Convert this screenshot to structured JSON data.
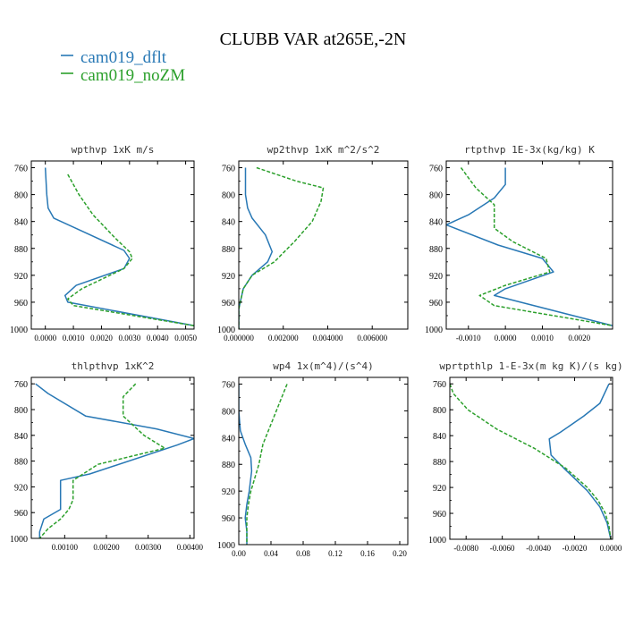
{
  "figure": {
    "title": "CLUBB VAR at265E,-2N",
    "legend": [
      {
        "label": "cam019_dflt",
        "color": "#2878b5"
      },
      {
        "label": "cam019_noZM",
        "color": "#2ca02c"
      }
    ]
  },
  "chart_data": [
    {
      "type": "line",
      "title": "wpthvp   1xK m/s",
      "xlim": [
        -0.0005,
        0.0053
      ],
      "ylim": [
        1000,
        750
      ],
      "xticks": [
        0.0,
        0.001,
        0.002,
        0.003,
        0.004,
        0.005
      ],
      "xtick_labels": [
        "0.0000",
        "0.0010",
        "0.0020",
        "0.0030",
        "0.0040",
        "0.0050"
      ],
      "yticks": [
        760,
        800,
        840,
        880,
        920,
        960,
        1000
      ],
      "series": [
        {
          "name": "cam019_dflt",
          "color": "#2878b5",
          "dashed": false,
          "x": [
            0.0,
            5e-05,
            0.0001,
            0.0003,
            0.0028,
            0.003,
            0.0028,
            0.0011,
            0.0007,
            0.0008,
            0.0053
          ],
          "y": [
            760,
            800,
            820,
            835,
            883,
            895,
            910,
            935,
            950,
            960,
            995
          ]
        },
        {
          "name": "cam019_noZM",
          "color": "#2ca02c",
          "dashed": true,
          "x": [
            0.0008,
            0.0012,
            0.0017,
            0.0025,
            0.003,
            0.0031,
            0.0028,
            0.0013,
            0.0008,
            0.001,
            0.0053
          ],
          "y": [
            770,
            800,
            830,
            865,
            885,
            895,
            910,
            940,
            955,
            965,
            995
          ]
        }
      ]
    },
    {
      "type": "line",
      "title": "wp2thvp   1xK m^2/s^2",
      "xlim": [
        0.0,
        0.0076
      ],
      "ylim": [
        1000,
        750
      ],
      "xticks": [
        0.0,
        0.002,
        0.004,
        0.006
      ],
      "xtick_labels": [
        "0.000000",
        "0.002000",
        "0.004000",
        "0.006000"
      ],
      "yticks": [
        760,
        800,
        840,
        880,
        920,
        960,
        1000
      ],
      "series": [
        {
          "name": "cam019_dflt",
          "color": "#2878b5",
          "dashed": false,
          "x": [
            0.0003,
            0.0003,
            0.0004,
            0.0006,
            0.0012,
            0.0015,
            0.0013,
            0.0006,
            0.0002,
            0.0,
            0.0
          ],
          "y": [
            760,
            800,
            820,
            835,
            860,
            885,
            900,
            920,
            940,
            970,
            1000
          ]
        },
        {
          "name": "cam019_noZM",
          "color": "#2ca02c",
          "dashed": true,
          "x": [
            0.0008,
            0.0026,
            0.0038,
            0.0037,
            0.0033,
            0.0025,
            0.0016,
            0.0006,
            0.0002,
            0.0,
            0.0
          ],
          "y": [
            760,
            780,
            790,
            810,
            840,
            870,
            900,
            920,
            940,
            970,
            1000
          ]
        }
      ]
    },
    {
      "type": "line",
      "title": "rtpthvp   1E-3x(kg/kg) K",
      "xlim": [
        -0.0016,
        0.0029
      ],
      "ylim": [
        1000,
        750
      ],
      "xticks": [
        -0.001,
        0.0,
        0.001,
        0.002
      ],
      "xtick_labels": [
        "-0.0010",
        "0.0000",
        "0.0010",
        "0.0020"
      ],
      "yticks": [
        760,
        800,
        840,
        880,
        920,
        960,
        1000
      ],
      "series": [
        {
          "name": "cam019_dflt",
          "color": "#2878b5",
          "dashed": false,
          "x": [
            0.0,
            0.0,
            -0.0003,
            -0.001,
            -0.0016,
            -0.0002,
            0.001,
            0.0013,
            0.0,
            -0.0003,
            0.0029
          ],
          "y": [
            760,
            785,
            805,
            830,
            845,
            875,
            895,
            915,
            940,
            950,
            995
          ]
        },
        {
          "name": "cam019_noZM",
          "color": "#2ca02c",
          "dashed": true,
          "x": [
            -0.0012,
            -0.0008,
            -0.0003,
            -0.0003,
            0.0002,
            0.0011,
            0.0012,
            0.0,
            -0.0007,
            -0.0003,
            0.0029
          ],
          "y": [
            760,
            790,
            815,
            850,
            870,
            895,
            915,
            935,
            950,
            965,
            995
          ]
        }
      ]
    },
    {
      "type": "line",
      "title": "thlpthvp   1xK^2",
      "xlim": [
        0.0002,
        0.0041
      ],
      "ylim": [
        1000,
        750
      ],
      "xticks": [
        0.001,
        0.002,
        0.003,
        0.004
      ],
      "xtick_labels": [
        "0.00100",
        "0.00200",
        "0.00300",
        "0.00400"
      ],
      "yticks": [
        760,
        800,
        840,
        880,
        920,
        960,
        1000
      ],
      "series": [
        {
          "name": "cam019_dflt",
          "color": "#2878b5",
          "dashed": false,
          "x": [
            0.0003,
            0.0006,
            0.0015,
            0.0032,
            0.0041,
            0.0037,
            0.0016,
            0.0009,
            0.0009,
            0.0009,
            0.0005,
            0.0004,
            0.0004
          ],
          "y": [
            760,
            775,
            810,
            830,
            845,
            855,
            900,
            910,
            930,
            955,
            970,
            990,
            1000
          ]
        },
        {
          "name": "cam019_noZM",
          "color": "#2ca02c",
          "dashed": true,
          "x": [
            0.0027,
            0.0024,
            0.0024,
            0.0029,
            0.0034,
            0.0018,
            0.0012,
            0.0012,
            0.0011,
            0.0009,
            0.0006,
            0.0004
          ],
          "y": [
            760,
            780,
            810,
            840,
            860,
            885,
            910,
            940,
            955,
            970,
            985,
            1000
          ]
        }
      ]
    },
    {
      "type": "line",
      "title": "wp4   1x(m^4)/(s^4)",
      "xlim": [
        0.0,
        0.21
      ],
      "ylim": [
        1000,
        750
      ],
      "xticks": [
        0.0,
        0.04,
        0.08,
        0.12,
        0.16,
        0.2
      ],
      "xtick_labels": [
        "0.00",
        "0.04",
        "0.08",
        "0.12",
        "0.16",
        "0.20"
      ],
      "yticks": [
        760,
        800,
        840,
        880,
        920,
        960,
        1000
      ],
      "series": [
        {
          "name": "cam019_dflt",
          "color": "#2878b5",
          "dashed": false,
          "x": [
            0.0,
            0.0,
            0.002,
            0.008,
            0.015,
            0.016,
            0.013,
            0.01,
            0.008,
            0.01,
            0.01
          ],
          "y": [
            760,
            800,
            830,
            850,
            870,
            890,
            920,
            940,
            960,
            980,
            1000
          ]
        },
        {
          "name": "cam019_noZM",
          "color": "#2ca02c",
          "dashed": true,
          "x": [
            0.06,
            0.05,
            0.04,
            0.03,
            0.025,
            0.02,
            0.015,
            0.012,
            0.01,
            0.01,
            0.01
          ],
          "y": [
            760,
            790,
            820,
            850,
            880,
            900,
            920,
            940,
            960,
            980,
            1000
          ]
        }
      ]
    },
    {
      "type": "line",
      "title": "wprtpthlp   1-E-3x(m kg K)/(s kg)",
      "xlim": [
        -0.0089,
        0.0001
      ],
      "ylim": [
        1000,
        750
      ],
      "xticks": [
        -0.008,
        -0.006,
        -0.004,
        -0.002,
        0.0
      ],
      "xtick_labels": [
        "-0.0080",
        "-0.0060",
        "-0.0040",
        "-0.0020",
        "0.0000"
      ],
      "yticks": [
        760,
        800,
        840,
        880,
        920,
        960,
        1000
      ],
      "series": [
        {
          "name": "cam019_dflt",
          "color": "#2878b5",
          "dashed": false,
          "x": [
            -0.0001,
            -0.0006,
            -0.0015,
            -0.0028,
            -0.0034,
            -0.0033,
            -0.0026,
            -0.0013,
            -0.0006,
            -0.0002,
            0.0
          ],
          "y": [
            760,
            790,
            810,
            835,
            845,
            870,
            890,
            925,
            950,
            975,
            1000
          ]
        },
        {
          "name": "cam019_noZM",
          "color": "#2ca02c",
          "dashed": true,
          "x": [
            -0.0089,
            -0.0087,
            -0.0079,
            -0.0063,
            -0.0042,
            -0.0025,
            -0.0013,
            -0.0007,
            -0.0003,
            -0.0001,
            0.0
          ],
          "y": [
            760,
            775,
            800,
            830,
            860,
            890,
            920,
            940,
            960,
            980,
            1000
          ]
        }
      ]
    }
  ]
}
